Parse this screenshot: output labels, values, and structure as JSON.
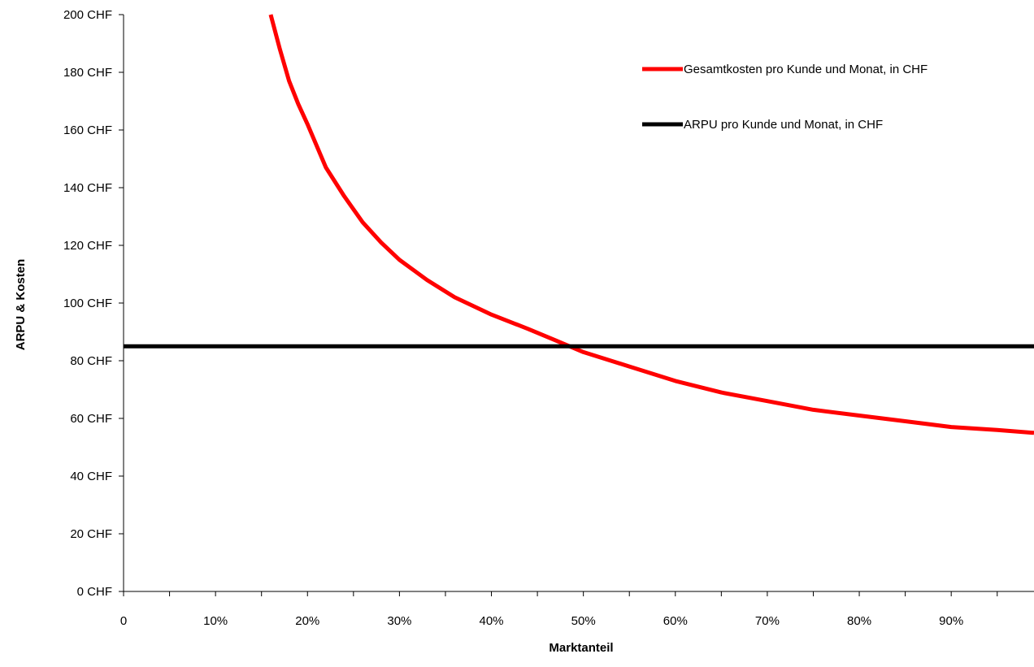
{
  "chart_data": {
    "type": "line",
    "title": "",
    "xlabel": "Marktanteil",
    "ylabel": "ARPU & Kosten",
    "xlim": [
      0,
      0.99
    ],
    "ylim": [
      0,
      200
    ],
    "grid": false,
    "legend_position": "top-right",
    "x_ticks": [
      {
        "value": 0,
        "label": "0"
      },
      {
        "value": 0.1,
        "label": "10%"
      },
      {
        "value": 0.2,
        "label": "20%"
      },
      {
        "value": 0.3,
        "label": "30%"
      },
      {
        "value": 0.4,
        "label": "40%"
      },
      {
        "value": 0.5,
        "label": "50%"
      },
      {
        "value": 0.6,
        "label": "60%"
      },
      {
        "value": 0.7,
        "label": "70%"
      },
      {
        "value": 0.8,
        "label": "80%"
      },
      {
        "value": 0.9,
        "label": "90%"
      }
    ],
    "y_ticks": [
      {
        "value": 0,
        "label": "0 CHF"
      },
      {
        "value": 20,
        "label": "20 CHF"
      },
      {
        "value": 40,
        "label": "40 CHF"
      },
      {
        "value": 60,
        "label": "60 CHF"
      },
      {
        "value": 80,
        "label": "80 CHF"
      },
      {
        "value": 100,
        "label": "100 CHF"
      },
      {
        "value": 120,
        "label": "120 CHF"
      },
      {
        "value": 140,
        "label": "140 CHF"
      },
      {
        "value": 160,
        "label": "160 CHF"
      },
      {
        "value": 180,
        "label": "180 CHF"
      },
      {
        "value": 200,
        "label": "200 CHF"
      }
    ],
    "series": [
      {
        "name": "Gesamtkosten pro Kunde und Monat, in CHF",
        "color": "#ff0000",
        "x": [
          0.16,
          0.17,
          0.18,
          0.19,
          0.2,
          0.22,
          0.24,
          0.26,
          0.28,
          0.3,
          0.33,
          0.36,
          0.4,
          0.44,
          0.47,
          0.5,
          0.55,
          0.6,
          0.65,
          0.7,
          0.75,
          0.8,
          0.85,
          0.9,
          0.95,
          0.99
        ],
        "y": [
          200,
          188,
          177,
          169,
          162,
          147,
          137,
          128,
          121,
          115,
          108,
          102,
          96,
          91,
          87,
          83,
          78,
          73,
          69,
          66,
          63,
          61,
          59,
          57,
          56,
          55
        ]
      },
      {
        "name": "ARPU pro Kunde und Monat, in CHF",
        "color": "#000000",
        "x": [
          0,
          0.99
        ],
        "y": [
          85,
          85
        ]
      }
    ]
  }
}
